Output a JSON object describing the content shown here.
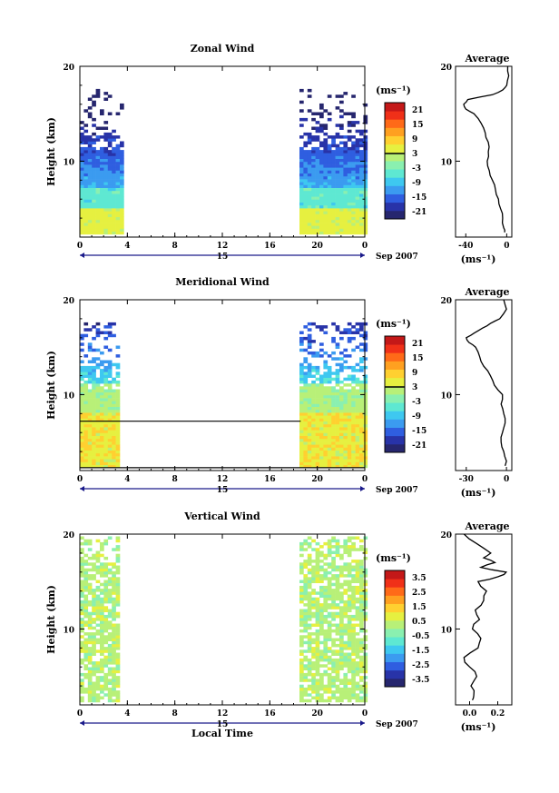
{
  "chart_data": [
    {
      "type": "heatmap",
      "title": "Zonal Wind",
      "ylabel": "Height (km)",
      "yticks": [
        "10",
        "20"
      ],
      "ylim": [
        2,
        20
      ],
      "xticks": [
        "0",
        "4",
        "8",
        "12",
        "16",
        "20",
        "0"
      ],
      "xlim": [
        0,
        24
      ],
      "date_label": "15",
      "month_label": "Sep 2007",
      "colorbar": {
        "unit": "(ms⁻¹)",
        "ticks": [
          "21",
          "15",
          "9",
          "3",
          "-3",
          "-9",
          "-15",
          "-21"
        ],
        "range": [
          -24,
          24
        ]
      },
      "data_windows": [
        [
          0,
          3.4
        ],
        [
          18.5,
          24
        ]
      ],
      "zero_contour": 3.0,
      "profile": {
        "title": "Average",
        "xticks": [
          "-40",
          "0"
        ],
        "xlim": [
          -50,
          5
        ],
        "xlabel": "(ms⁻¹)",
        "yticks": [
          "10",
          "20"
        ],
        "ylim": [
          2,
          20
        ],
        "height_km": [
          2.5,
          3,
          4,
          5,
          6,
          7,
          8,
          9,
          10,
          11,
          12,
          13,
          14,
          15,
          15.5,
          16,
          16.5,
          17,
          17.5,
          18,
          19,
          20
        ],
        "wind": [
          -2,
          -3,
          -4,
          -6,
          -8,
          -11,
          -14,
          -17,
          -19,
          -18,
          -18,
          -21,
          -25,
          -32,
          -40,
          -42,
          -38,
          -14,
          -4,
          0,
          2,
          1
        ]
      }
    },
    {
      "type": "heatmap",
      "title": "Meridional Wind",
      "ylabel": "Height (km)",
      "yticks": [
        "10",
        "20"
      ],
      "ylim": [
        2,
        20
      ],
      "xticks": [
        "0",
        "4",
        "8",
        "12",
        "16",
        "20",
        "0"
      ],
      "xlim": [
        0,
        24
      ],
      "date_label": "15",
      "month_label": "Sep 2007",
      "colorbar": {
        "unit": "(ms⁻¹)",
        "ticks": [
          "21",
          "15",
          "9",
          "3",
          "-3",
          "-9",
          "-15",
          "-21"
        ],
        "range": [
          -24,
          24
        ]
      },
      "data_windows": [
        [
          0,
          3.2
        ],
        [
          18.5,
          24
        ]
      ],
      "zero_contour": 3.0,
      "profile": {
        "title": "Average",
        "xticks": [
          "-30",
          "0"
        ],
        "xlim": [
          -38,
          4
        ],
        "xlabel": "(ms⁻¹)",
        "yticks": [
          "10",
          "20"
        ],
        "ylim": [
          2,
          20
        ],
        "height_km": [
          2.5,
          3,
          4,
          5,
          6,
          7,
          8,
          9,
          10,
          11,
          12,
          13,
          14,
          15,
          15.5,
          16,
          16.5,
          17,
          17.5,
          18,
          19,
          20
        ],
        "wind": [
          -1,
          0,
          -2,
          -4,
          -3,
          -1,
          -2,
          -4,
          -3,
          -9,
          -12,
          -17,
          -20,
          -23,
          -28,
          -30,
          -24,
          -18,
          -12,
          -5,
          0,
          -2
        ]
      }
    },
    {
      "type": "heatmap",
      "title": "Vertical Wind",
      "ylabel": "Height (km)",
      "yticks": [
        "10",
        "20"
      ],
      "ylim": [
        2,
        20
      ],
      "xticks": [
        "0",
        "4",
        "8",
        "12",
        "16",
        "20",
        "0"
      ],
      "xlim": [
        0,
        24
      ],
      "xlabel": "Local Time",
      "date_label": "15",
      "month_label": "Sep 2007",
      "colorbar": {
        "unit": "(ms⁻¹)",
        "ticks": [
          "3.5",
          "2.5",
          "1.5",
          "0.5",
          "-0.5",
          "-1.5",
          "-2.5",
          "-3.5"
        ],
        "range": [
          -4,
          4
        ]
      },
      "data_windows": [
        [
          0,
          3.2
        ],
        [
          18.5,
          24
        ]
      ],
      "profile": {
        "title": "Average",
        "xticks": [
          "0.0",
          "0.2"
        ],
        "xlim": [
          -0.1,
          0.3
        ],
        "xlabel": "(ms⁻¹)",
        "yticks": [
          "10",
          "20"
        ],
        "ylim": [
          2,
          20
        ],
        "height_km": [
          2.5,
          3,
          4,
          5,
          6,
          7,
          8,
          9,
          10,
          11,
          12,
          13,
          14,
          15,
          15.5,
          16,
          16.5,
          17,
          17.5,
          18,
          19,
          20
        ],
        "wind": [
          0.02,
          0.03,
          0.01,
          0.05,
          0.0,
          -0.04,
          0.06,
          0.08,
          0.02,
          0.07,
          0.04,
          0.1,
          0.12,
          0.06,
          0.2,
          0.26,
          0.08,
          0.18,
          0.1,
          0.15,
          0.05,
          -0.04
        ]
      }
    }
  ]
}
